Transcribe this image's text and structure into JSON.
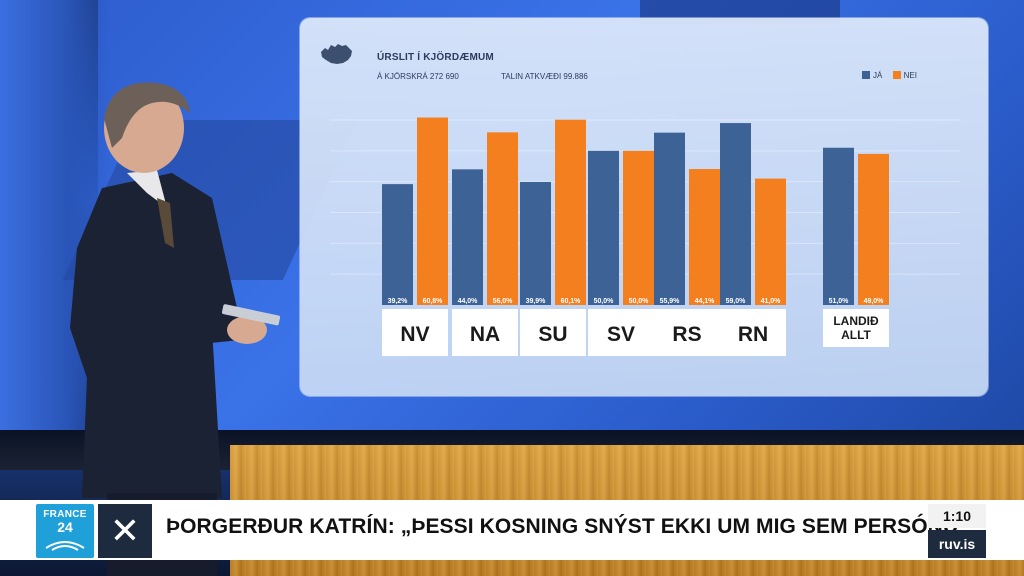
{
  "chart_data": {
    "type": "bar",
    "title": "ÚRSLIT Í KJÖRDÆMUM",
    "subtitle_left": "Á KJÖRSKRÁ 272 690",
    "subtitle_right": "TALIN ATKVÆÐI 99.886",
    "legend": {
      "position": "top-right",
      "items": [
        "JÁ",
        "NEI"
      ]
    },
    "colors": {
      "ja": "#3d6296",
      "nei": "#f37f1f"
    },
    "categories": [
      "NV",
      "NA",
      "SU",
      "SV",
      "RS",
      "RN",
      "LANDIÐ ALLT"
    ],
    "series": [
      {
        "name": "JÁ",
        "values": [
          39.2,
          44.0,
          39.9,
          50.0,
          55.9,
          59.0,
          51.0
        ],
        "labels": [
          "39,2%",
          "44,0%",
          "39,9%",
          "50,0%",
          "55,9%",
          "59,0%",
          "51,0%"
        ]
      },
      {
        "name": "NEI",
        "values": [
          60.8,
          56.0,
          60.1,
          50.0,
          44.1,
          41.0,
          49.0
        ],
        "labels": [
          "60,8%",
          "56,0%",
          "60,1%",
          "50,0%",
          "44,1%",
          "41,0%",
          "49,0%"
        ]
      }
    ],
    "ylim": [
      0,
      60
    ],
    "grid": true
  },
  "ticker": {
    "channel_top": "FRANCE",
    "channel_num": "24",
    "close_glyph": "✕",
    "headline": "ÞORGERÐUR KATRÍN: „ÞESSI KOSNING SNÝST EKKI UM MIG SEM PERSÓNU“",
    "time": "1:10",
    "site": "ruv.is"
  }
}
